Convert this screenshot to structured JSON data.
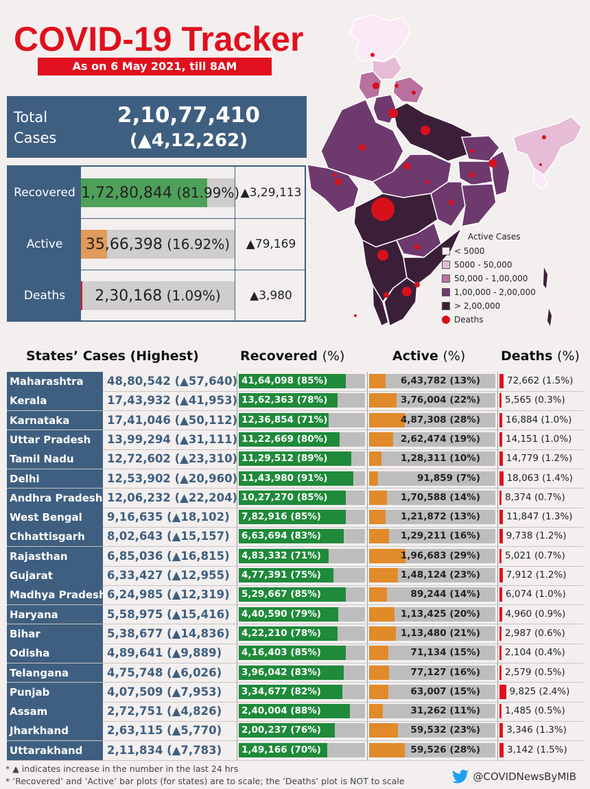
{
  "header": {
    "title": "COVID-19 Tracker",
    "date": "As on 6 May 2021, till 8AM"
  },
  "total": {
    "label": "Total Cases",
    "value": "2,10,77,410",
    "delta": "(▲4,12,262)"
  },
  "summary": [
    {
      "label": "Recovered",
      "value": "1,72,80,844",
      "pct": "(81.99%)",
      "fraction": 0.8199,
      "delta": "▲3,29,113",
      "color": "#4ea05a"
    },
    {
      "label": "Active",
      "value": "35,66,398",
      "pct": "(16.92%)",
      "fraction": 0.1692,
      "delta": "▲79,169",
      "color": "#e09a5a"
    },
    {
      "label": "Deaths",
      "value": "2,30,168",
      "pct": "(1.09%)",
      "fraction": 0.0109,
      "delta": "▲3,980",
      "color": "#e0101e"
    }
  ],
  "legend": {
    "title": "Active Cases",
    "items": [
      {
        "label": "< 5000",
        "color": "#fbe9f6"
      },
      {
        "label": "5000 - 50,000",
        "color": "#e6bcd6"
      },
      {
        "label": "50,000 - 1,00,000",
        "color": "#b8709e"
      },
      {
        "label": "1,00,000 - 2,00,000",
        "color": "#6e3a6e"
      },
      {
        "label": "> 2,00,000",
        "color": "#3b1f38"
      }
    ],
    "deaths_label": "Deaths"
  },
  "table_headers": {
    "states": "States’ Cases (Highest)",
    "recovered": "Recovered",
    "active": "Active",
    "deaths": "Deaths",
    "pct": "(%)"
  },
  "states": [
    {
      "name": "Maharashtra",
      "cases": "48,80,542 (▲57,640)",
      "rec": "41,64,098 (85%)",
      "rec_pct": 85,
      "act": "6,43,782 (13%)",
      "act_pct": 13,
      "death": "72,662 (1.5%)",
      "death_pct": 1.5
    },
    {
      "name": "Kerala",
      "cases": "17,43,932 (▲41,953)",
      "rec": "13,62,363 (78%)",
      "rec_pct": 78,
      "act": "3,76,004 (22%)",
      "act_pct": 22,
      "death": "5,565 (0.3%)",
      "death_pct": 0.3
    },
    {
      "name": "Karnataka",
      "cases": "17,41,046 (▲50,112)",
      "rec": "12,36,854 (71%)",
      "rec_pct": 71,
      "act": "4,87,308 (28%)",
      "act_pct": 28,
      "death": "16,884 (1.0%)",
      "death_pct": 1.0
    },
    {
      "name": "Uttar Pradesh",
      "cases": "13,99,294 (▲31,111)",
      "rec": "11,22,669 (80%)",
      "rec_pct": 80,
      "act": "2,62,474 (19%)",
      "act_pct": 19,
      "death": "14,151 (1.0%)",
      "death_pct": 1.0
    },
    {
      "name": "Tamil Nadu",
      "cases": "12,72,602 (▲23,310)",
      "rec": "11,29,512 (89%)",
      "rec_pct": 89,
      "act": "1,28,311 (10%)",
      "act_pct": 10,
      "death": "14,779 (1.2%)",
      "death_pct": 1.2
    },
    {
      "name": "Delhi",
      "cases": "12,53,902 (▲20,960)",
      "rec": "11,43,980 (91%)",
      "rec_pct": 91,
      "act": "91,859 (7%)",
      "act_pct": 7,
      "death": "18,063 (1.4%)",
      "death_pct": 1.4
    },
    {
      "name": "Andhra Pradesh",
      "cases": "12,06,232 (▲22,204)",
      "rec": "10,27,270 (85%)",
      "rec_pct": 85,
      "act": "1,70,588 (14%)",
      "act_pct": 14,
      "death": "8,374 (0.7%)",
      "death_pct": 0.7
    },
    {
      "name": "West Bengal",
      "cases": "9,16,635 (▲18,102)",
      "rec": "7,82,916 (85%)",
      "rec_pct": 85,
      "act": "1,21,872 (13%)",
      "act_pct": 13,
      "death": "11,847 (1.3%)",
      "death_pct": 1.3
    },
    {
      "name": "Chhattisgarh",
      "cases": "8,02,643 (▲15,157)",
      "rec": "6,63,694 (83%)",
      "rec_pct": 83,
      "act": "1,29,211 (16%)",
      "act_pct": 16,
      "death": "9,738 (1.2%)",
      "death_pct": 1.2
    },
    {
      "name": "Rajasthan",
      "cases": "6,85,036 (▲16,815)",
      "rec": "4,83,332 (71%)",
      "rec_pct": 71,
      "act": "1,96,683 (29%)",
      "act_pct": 29,
      "death": "5,021 (0.7%)",
      "death_pct": 0.7
    },
    {
      "name": "Gujarat",
      "cases": "6,33,427 (▲12,955)",
      "rec": "4,77,391 (75%)",
      "rec_pct": 75,
      "act": "1,48,124 (23%)",
      "act_pct": 23,
      "death": "7,912 (1.2%)",
      "death_pct": 1.2
    },
    {
      "name": "Madhya Pradesh",
      "cases": "6,24,985 (▲12,319)",
      "rec": "5,29,667 (85%)",
      "rec_pct": 85,
      "act": "89,244 (14%)",
      "act_pct": 14,
      "death": "6,074 (1.0%)",
      "death_pct": 1.0
    },
    {
      "name": "Haryana",
      "cases": "5,58,975 (▲15,416)",
      "rec": "4,40,590 (79%)",
      "rec_pct": 79,
      "act": "1,13,425 (20%)",
      "act_pct": 20,
      "death": "4,960 (0.9%)",
      "death_pct": 0.9
    },
    {
      "name": "Bihar",
      "cases": "5,38,677 (▲14,836)",
      "rec": "4,22,210 (78%)",
      "rec_pct": 78,
      "act": "1,13,480 (21%)",
      "act_pct": 21,
      "death": "2,987 (0.6%)",
      "death_pct": 0.6
    },
    {
      "name": "Odisha",
      "cases": "4,89,641 (▲9,889)",
      "rec": "4,16,403 (85%)",
      "rec_pct": 85,
      "act": "71,134 (15%)",
      "act_pct": 15,
      "death": "2,104 (0.4%)",
      "death_pct": 0.4
    },
    {
      "name": "Telangana",
      "cases": "4,75,748 (▲6,026)",
      "rec": "3,96,042 (83%)",
      "rec_pct": 83,
      "act": "77,127 (16%)",
      "act_pct": 16,
      "death": "2,579 (0.5%)",
      "death_pct": 0.5
    },
    {
      "name": "Punjab",
      "cases": "4,07,509 (▲7,953)",
      "rec": "3,34,677 (82%)",
      "rec_pct": 82,
      "act": "63,007 (15%)",
      "act_pct": 15,
      "death": "9,825 (2.4%)",
      "death_pct": 2.4
    },
    {
      "name": "Assam",
      "cases": "2,72,751 (▲4,826)",
      "rec": "2,40,004 (88%)",
      "rec_pct": 88,
      "act": "31,262 (11%)",
      "act_pct": 11,
      "death": "1,485 (0.5%)",
      "death_pct": 0.5
    },
    {
      "name": "Jharkhand",
      "cases": "2,63,115 (▲5,770)",
      "rec": "2,00,237 (76%)",
      "rec_pct": 76,
      "act": "59,532 (23%)",
      "act_pct": 23,
      "death": "3,346 (1.3%)",
      "death_pct": 1.3
    },
    {
      "name": "Uttarakhand",
      "cases": "2,11,834 (▲7,783)",
      "rec": "1,49,166 (70%)",
      "rec_pct": 70,
      "act": "59,526 (28%)",
      "act_pct": 28,
      "death": "3,142 (1.5%)",
      "death_pct": 1.5
    }
  ],
  "footnotes": [
    "* ▲ indicates increase in the number in the last 24 hrs",
    "* ’Recovered’ and ’Active’ bar plots (for states) are to scale; the ’Deaths’ plot is NOT to scale"
  ],
  "handle": "@COVIDNewsByMIB"
}
